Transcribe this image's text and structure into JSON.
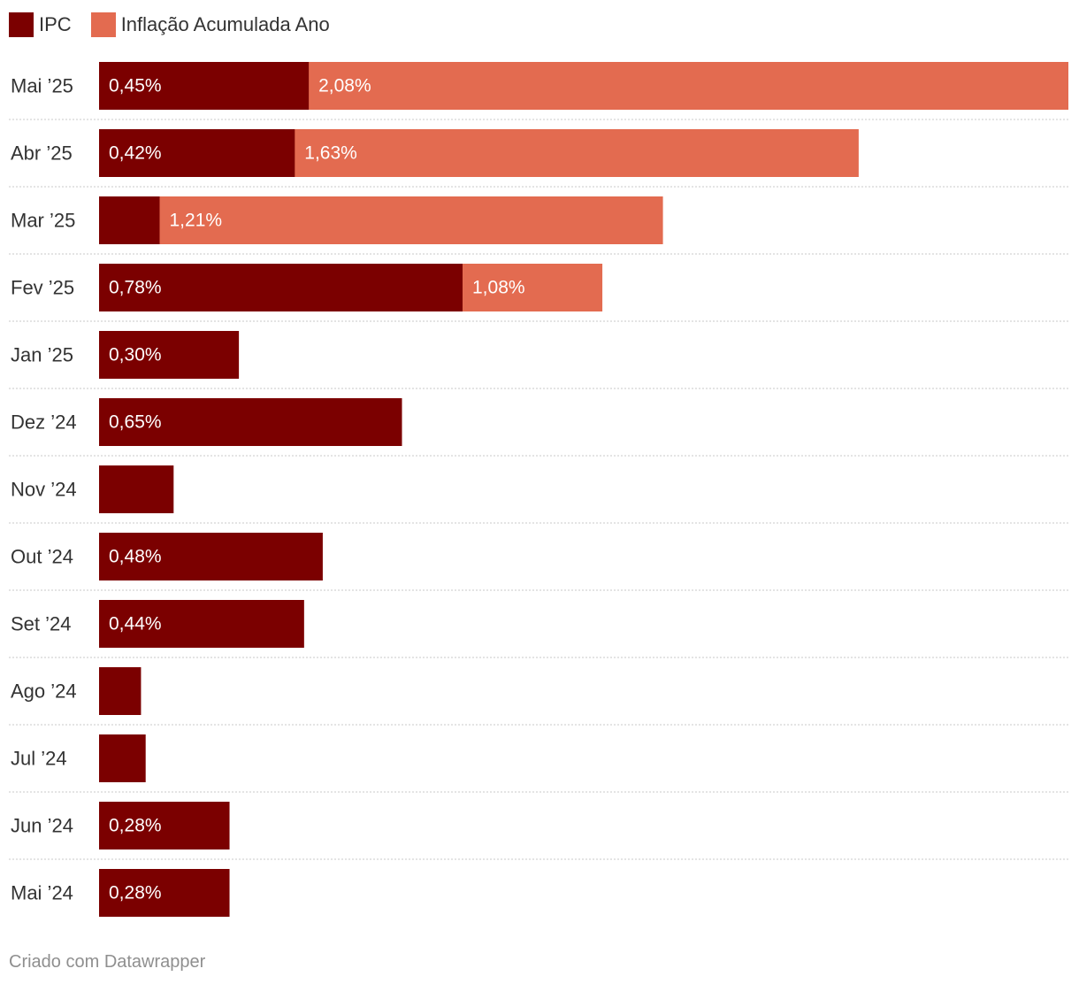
{
  "legend": [
    {
      "label": "IPC",
      "color": "#7b0000"
    },
    {
      "label": "Inflação Acumulada Ano",
      "color": "#e36b50"
    }
  ],
  "chart_data": {
    "type": "bar",
    "orientation": "horizontal",
    "stacked": "overlay",
    "title": "",
    "xlim": [
      0,
      2.08
    ],
    "categories": [
      "Mai ’25",
      "Abr ’25",
      "Mar ’25",
      "Fev ’25",
      "Jan ’25",
      "Dez ’24",
      "Nov ’24",
      "Out ’24",
      "Set ’24",
      "Ago ’24",
      "Jul ’24",
      "Jun ’24",
      "Mai ’24"
    ],
    "series": [
      {
        "name": "IPC",
        "color": "#7b0000",
        "values": [
          0.45,
          0.42,
          0.13,
          0.78,
          0.3,
          0.65,
          0.16,
          0.48,
          0.44,
          0.09,
          0.1,
          0.28,
          0.28
        ],
        "labels": [
          "0,45%",
          "0,42%",
          "",
          "0,78%",
          "0,30%",
          "0,65%",
          "",
          "0,48%",
          "0,44%",
          "",
          "",
          "0,28%",
          "0,28%"
        ]
      },
      {
        "name": "Inflação Acumulada Ano",
        "color": "#e36b50",
        "values": [
          2.08,
          1.63,
          1.21,
          1.08,
          0.3,
          null,
          null,
          null,
          null,
          null,
          null,
          null,
          null
        ],
        "labels": [
          "2,08%",
          "1,63%",
          "1,21%",
          "1,08%",
          "0,30%",
          "",
          "",
          "",
          "",
          "",
          "",
          "",
          ""
        ]
      }
    ]
  },
  "footer": {
    "credit": "Criado com Datawrapper"
  }
}
